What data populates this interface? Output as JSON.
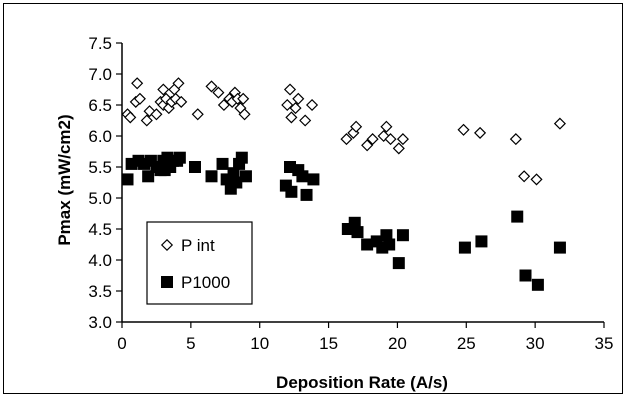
{
  "chart_data": {
    "type": "scatter",
    "xlabel": "Deposition Rate (A/s)",
    "ylabel": "Pmax (mW/cm2)",
    "xlim": [
      0,
      35
    ],
    "ylim": [
      3.0,
      7.5
    ],
    "x_ticks": [
      "0",
      "5",
      "10",
      "15",
      "20",
      "25",
      "30",
      "35"
    ],
    "y_ticks": [
      "3.0",
      "3.5",
      "4.0",
      "4.5",
      "5.0",
      "5.5",
      "6.0",
      "6.5",
      "7.0",
      "7.5"
    ],
    "grid": false,
    "legend_position": "bottom-left",
    "series": [
      {
        "name": "P int",
        "marker": "diamond-open",
        "color": "#000000",
        "points": [
          [
            0.4,
            6.35
          ],
          [
            0.6,
            6.3
          ],
          [
            1.0,
            6.55
          ],
          [
            1.1,
            6.85
          ],
          [
            1.3,
            6.6
          ],
          [
            1.8,
            6.25
          ],
          [
            2.0,
            6.4
          ],
          [
            2.5,
            6.35
          ],
          [
            2.8,
            6.55
          ],
          [
            3.0,
            6.5
          ],
          [
            3.0,
            6.75
          ],
          [
            3.2,
            6.6
          ],
          [
            3.4,
            6.45
          ],
          [
            3.6,
            6.55
          ],
          [
            3.8,
            6.75
          ],
          [
            3.9,
            6.6
          ],
          [
            4.1,
            6.85
          ],
          [
            4.3,
            6.55
          ],
          [
            5.5,
            6.35
          ],
          [
            6.5,
            6.8
          ],
          [
            7.0,
            6.7
          ],
          [
            7.4,
            6.5
          ],
          [
            7.8,
            6.6
          ],
          [
            8.0,
            6.55
          ],
          [
            8.2,
            6.7
          ],
          [
            8.4,
            6.6
          ],
          [
            8.6,
            6.45
          ],
          [
            8.8,
            6.6
          ],
          [
            8.9,
            6.35
          ],
          [
            12.0,
            6.5
          ],
          [
            12.2,
            6.75
          ],
          [
            12.3,
            6.3
          ],
          [
            12.6,
            6.45
          ],
          [
            12.8,
            6.6
          ],
          [
            13.3,
            6.25
          ],
          [
            13.8,
            6.5
          ],
          [
            16.3,
            5.95
          ],
          [
            16.8,
            6.05
          ],
          [
            17.0,
            6.15
          ],
          [
            17.8,
            5.85
          ],
          [
            18.2,
            5.95
          ],
          [
            19.0,
            6.0
          ],
          [
            19.2,
            6.15
          ],
          [
            19.5,
            5.95
          ],
          [
            20.1,
            5.8
          ],
          [
            20.4,
            5.95
          ],
          [
            24.8,
            6.1
          ],
          [
            26.0,
            6.05
          ],
          [
            28.6,
            5.95
          ],
          [
            29.2,
            5.35
          ],
          [
            30.1,
            5.3
          ],
          [
            31.8,
            6.2
          ]
        ]
      },
      {
        "name": "P1000",
        "marker": "square-filled",
        "color": "#000000",
        "points": [
          [
            0.4,
            5.3
          ],
          [
            0.7,
            5.55
          ],
          [
            1.2,
            5.6
          ],
          [
            1.6,
            5.55
          ],
          [
            1.9,
            5.35
          ],
          [
            2.1,
            5.6
          ],
          [
            2.5,
            5.5
          ],
          [
            2.8,
            5.45
          ],
          [
            3.0,
            5.6
          ],
          [
            3.1,
            5.45
          ],
          [
            3.3,
            5.65
          ],
          [
            3.5,
            5.5
          ],
          [
            3.7,
            5.6
          ],
          [
            4.0,
            5.6
          ],
          [
            4.2,
            5.65
          ],
          [
            5.3,
            5.5
          ],
          [
            6.5,
            5.35
          ],
          [
            7.3,
            5.55
          ],
          [
            7.6,
            5.3
          ],
          [
            7.9,
            5.15
          ],
          [
            8.1,
            5.4
          ],
          [
            8.3,
            5.25
          ],
          [
            8.5,
            5.55
          ],
          [
            8.7,
            5.65
          ],
          [
            9.0,
            5.35
          ],
          [
            11.9,
            5.2
          ],
          [
            12.2,
            5.5
          ],
          [
            12.3,
            5.1
          ],
          [
            12.8,
            5.45
          ],
          [
            13.1,
            5.35
          ],
          [
            13.4,
            5.05
          ],
          [
            13.9,
            5.3
          ],
          [
            16.4,
            4.5
          ],
          [
            16.9,
            4.6
          ],
          [
            17.1,
            4.45
          ],
          [
            17.8,
            4.25
          ],
          [
            18.5,
            4.3
          ],
          [
            18.9,
            4.2
          ],
          [
            19.2,
            4.4
          ],
          [
            19.4,
            4.25
          ],
          [
            20.1,
            3.95
          ],
          [
            20.4,
            4.4
          ],
          [
            24.9,
            4.2
          ],
          [
            26.1,
            4.3
          ],
          [
            28.7,
            4.7
          ],
          [
            29.3,
            3.75
          ],
          [
            30.2,
            3.6
          ],
          [
            31.8,
            4.2
          ]
        ]
      }
    ]
  }
}
